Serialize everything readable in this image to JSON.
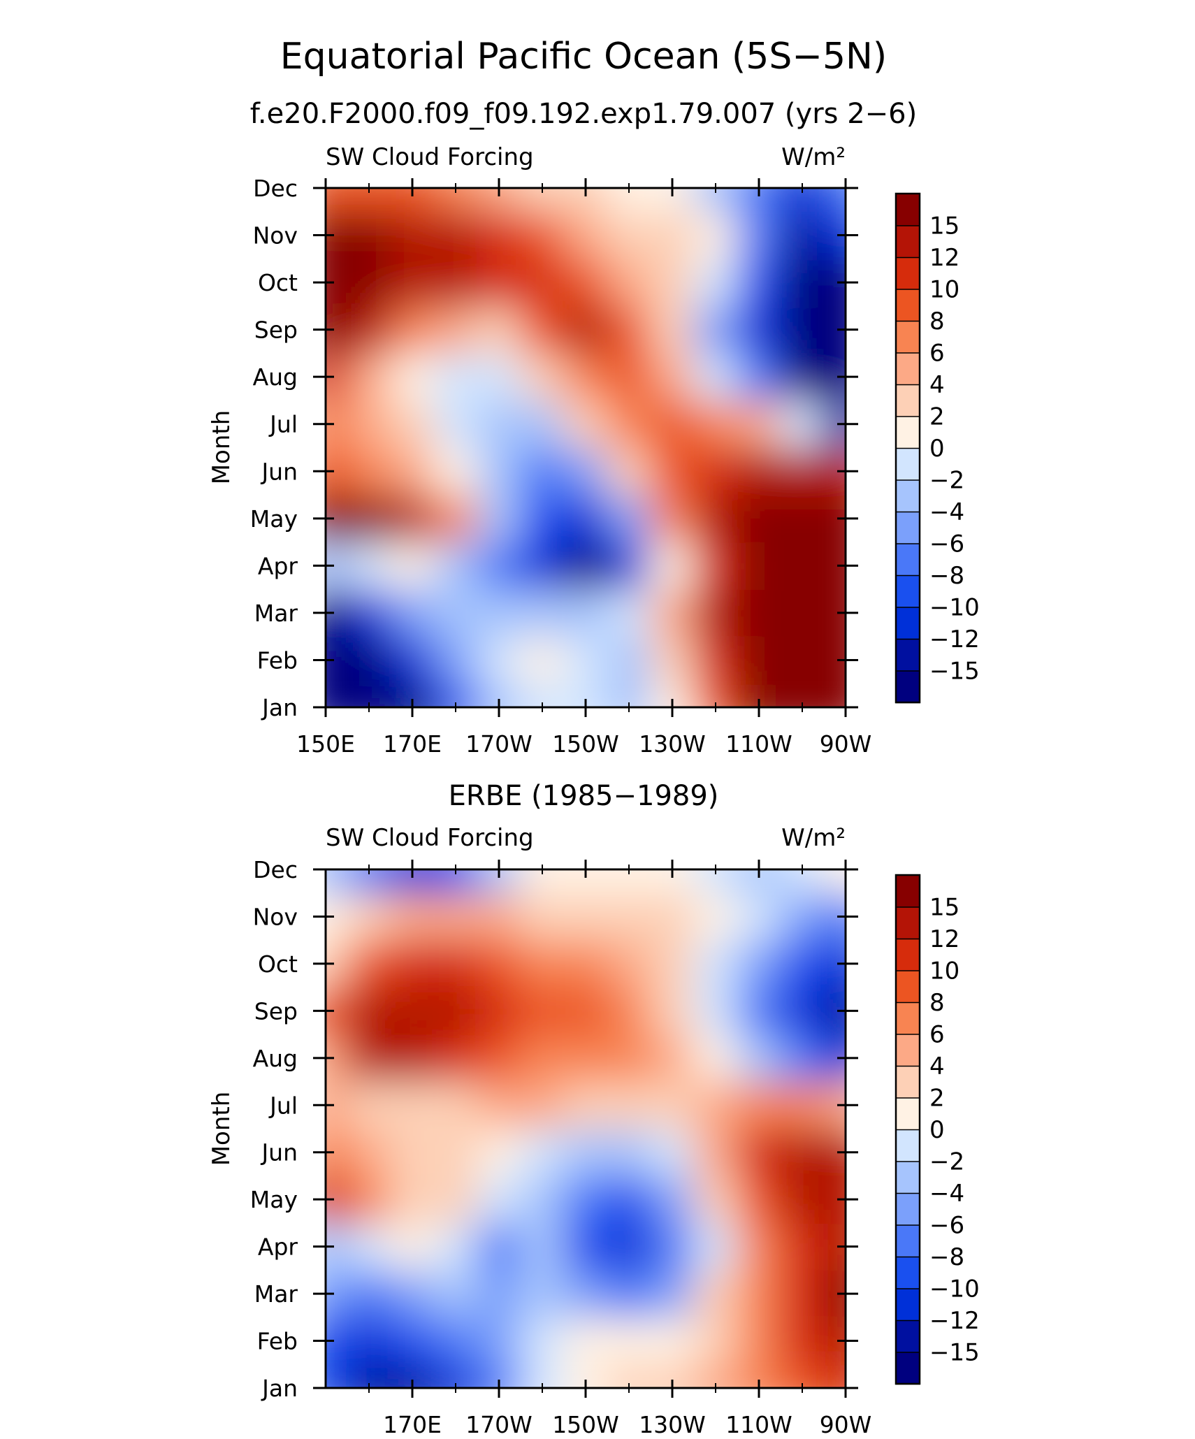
{
  "title": "Equatorial Pacific Ocean (5S−5N)",
  "colors": [
    "#00007f",
    "#0010a0",
    "#0030d8",
    "#1a50ef",
    "#4a78f8",
    "#7ba0fb",
    "#a6c4fd",
    "#d2e5fe",
    "#fff2e4",
    "#fdd0b6",
    "#fca986",
    "#f88452",
    "#ec5522",
    "#d62c0c",
    "#b41406",
    "#870000"
  ],
  "chart_data": [
    {
      "type": "heatmap",
      "title": "f.e20.F2000.f09_f09.192.exp1.79.007 (yrs 2−6)",
      "left_label": "SW Cloud Forcing",
      "right_label": "W/m²",
      "ylabel": "Month",
      "xtick_labels": [
        "150E",
        "170E",
        "170W",
        "150W",
        "130W",
        "110W",
        "90W"
      ],
      "xlim": [
        150,
        270
      ],
      "ytick_labels": [
        "Jan",
        "Feb",
        "Mar",
        "Apr",
        "May",
        "Jun",
        "Jul",
        "Aug",
        "Sep",
        "Oct",
        "Nov",
        "Dec"
      ],
      "colorbar_labels": [
        "15",
        "12",
        "10",
        "8",
        "6",
        "4",
        "2",
        "0",
        "−2",
        "−4",
        "−6",
        "−8",
        "−10",
        "−12",
        "−15"
      ],
      "x": [
        150,
        160,
        170,
        180,
        190,
        200,
        210,
        220,
        230,
        240,
        250,
        260,
        270
      ],
      "z": [
        [
          -18,
          -18,
          -16,
          -10,
          -3,
          -1,
          -1,
          -3,
          0,
          8,
          16,
          18,
          18
        ],
        [
          -18,
          -17,
          -12,
          -6,
          -2,
          1,
          -2,
          -3,
          2,
          10,
          18,
          18,
          18
        ],
        [
          -16,
          -12,
          -6,
          -4,
          -4,
          -4,
          -4,
          -2,
          4,
          12,
          18,
          18,
          18
        ],
        [
          -4,
          -1,
          1,
          -4,
          -8,
          -11,
          -16,
          -12,
          0,
          10,
          16,
          18,
          18
        ],
        [
          16,
          16,
          14,
          6,
          -4,
          -10,
          -12,
          -6,
          6,
          14,
          16,
          18,
          18
        ],
        [
          8,
          6,
          4,
          1,
          -4,
          -8,
          -6,
          2,
          8,
          10,
          12,
          14,
          14
        ],
        [
          6,
          4,
          2,
          -2,
          -4,
          -3,
          2,
          6,
          8,
          6,
          4,
          -2,
          -14
        ],
        [
          10,
          4,
          1,
          -2,
          -2,
          2,
          6,
          8,
          4,
          -2,
          -8,
          -18,
          -18
        ],
        [
          16,
          12,
          6,
          4,
          2,
          8,
          12,
          8,
          2,
          -6,
          -12,
          -18,
          -18
        ],
        [
          18,
          16,
          12,
          12,
          10,
          10,
          8,
          4,
          2,
          -2,
          -10,
          -18,
          -18
        ],
        [
          18,
          18,
          14,
          14,
          10,
          8,
          4,
          3,
          2,
          0,
          -8,
          -14,
          -12
        ],
        [
          8,
          8,
          8,
          6,
          4,
          3,
          2,
          1,
          0,
          -4,
          -8,
          -12,
          -8
        ]
      ]
    },
    {
      "type": "heatmap",
      "title": "ERBE (1985−1989)",
      "left_label": "SW Cloud Forcing",
      "right_label": "W/m²",
      "ylabel": "Month",
      "xtick_labels": [
        "170E",
        "170W",
        "150W",
        "130W",
        "110W",
        "90W"
      ],
      "xlim": [
        150,
        270
      ],
      "ytick_labels": [
        "Jan",
        "Feb",
        "Mar",
        "Apr",
        "May",
        "Jun",
        "Jul",
        "Aug",
        "Sep",
        "Oct",
        "Nov",
        "Dec"
      ],
      "colorbar_labels": [
        "15",
        "12",
        "10",
        "8",
        "6",
        "4",
        "2",
        "0",
        "−2",
        "−4",
        "−6",
        "−8",
        "−10",
        "−12",
        "−15"
      ],
      "x": [
        150,
        160,
        170,
        180,
        190,
        200,
        210,
        220,
        230,
        240,
        250,
        260,
        270
      ],
      "z": [
        [
          -10,
          -14,
          -14,
          -12,
          -8,
          -2,
          0,
          2,
          2,
          4,
          6,
          8,
          10
        ],
        [
          -10,
          -12,
          -10,
          -8,
          -6,
          -2,
          0,
          1,
          1,
          3,
          6,
          10,
          12
        ],
        [
          -6,
          -8,
          -6,
          -4,
          -5,
          -4,
          -6,
          -8,
          -6,
          2,
          6,
          10,
          16
        ],
        [
          -4,
          -2,
          0,
          -2,
          -8,
          -4,
          -10,
          -12,
          -8,
          -2,
          6,
          10,
          12
        ],
        [
          10,
          6,
          3,
          2,
          -2,
          -4,
          -8,
          -9,
          -6,
          2,
          8,
          12,
          12
        ],
        [
          6,
          4,
          2,
          2,
          1,
          -2,
          -4,
          -4,
          -2,
          4,
          10,
          14,
          12
        ],
        [
          4,
          2,
          2,
          2,
          4,
          4,
          2,
          2,
          2,
          4,
          6,
          6,
          4
        ],
        [
          4,
          14,
          12,
          10,
          8,
          6,
          6,
          6,
          4,
          0,
          -4,
          -8,
          -12
        ],
        [
          8,
          14,
          14,
          12,
          10,
          8,
          8,
          6,
          3,
          -2,
          -8,
          -12,
          -14
        ],
        [
          2,
          8,
          10,
          10,
          8,
          6,
          6,
          4,
          2,
          -2,
          -6,
          -10,
          -12
        ],
        [
          0,
          2,
          4,
          4,
          4,
          3,
          2,
          2,
          2,
          0,
          -2,
          -6,
          -8
        ],
        [
          -4,
          -8,
          -12,
          -10,
          -4,
          0,
          0,
          1,
          0,
          -2,
          -4,
          -2,
          0
        ]
      ]
    }
  ]
}
